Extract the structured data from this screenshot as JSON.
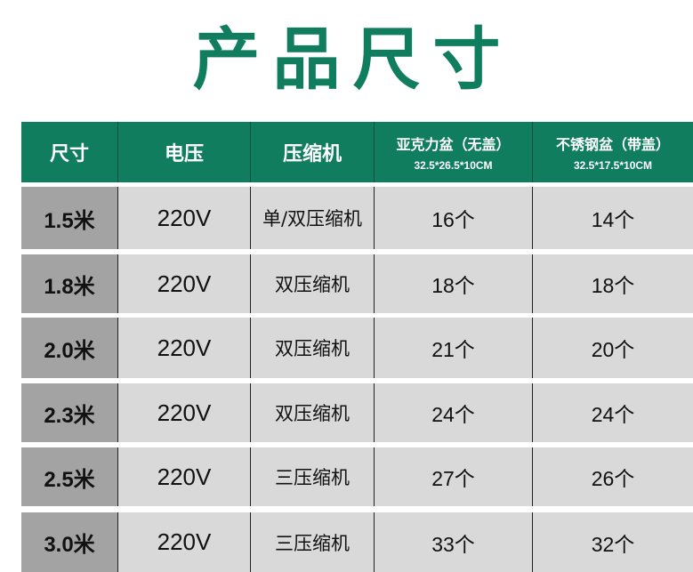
{
  "title": "产品尺寸",
  "colors": {
    "brand_green": "#0f7d5e",
    "size_cell": "#a3a3a3",
    "row_bg": "#d9d9d9"
  },
  "header": [
    {
      "label": "尺寸"
    },
    {
      "label": "电压"
    },
    {
      "label": "压缩机"
    },
    {
      "label": "亚克力盆（无盖）",
      "sub": "32.5*26.5*10CM"
    },
    {
      "label": "不锈钢盆（带盖）",
      "sub": "32.5*17.5*10CM"
    }
  ],
  "rows": [
    {
      "size": "1.5米",
      "voltage": "220V",
      "compressor": "单/双压缩机",
      "acrylic": "16个",
      "steel": "14个"
    },
    {
      "size": "1.8米",
      "voltage": "220V",
      "compressor": "双压缩机",
      "acrylic": "18个",
      "steel": "18个"
    },
    {
      "size": "2.0米",
      "voltage": "220V",
      "compressor": "双压缩机",
      "acrylic": "21个",
      "steel": "20个"
    },
    {
      "size": "2.3米",
      "voltage": "220V",
      "compressor": "双压缩机",
      "acrylic": "24个",
      "steel": "24个"
    },
    {
      "size": "2.5米",
      "voltage": "220V",
      "compressor": "三压缩机",
      "acrylic": "27个",
      "steel": "26个"
    },
    {
      "size": "3.0米",
      "voltage": "220V",
      "compressor": "三压缩机",
      "acrylic": "33个",
      "steel": "32个"
    }
  ]
}
